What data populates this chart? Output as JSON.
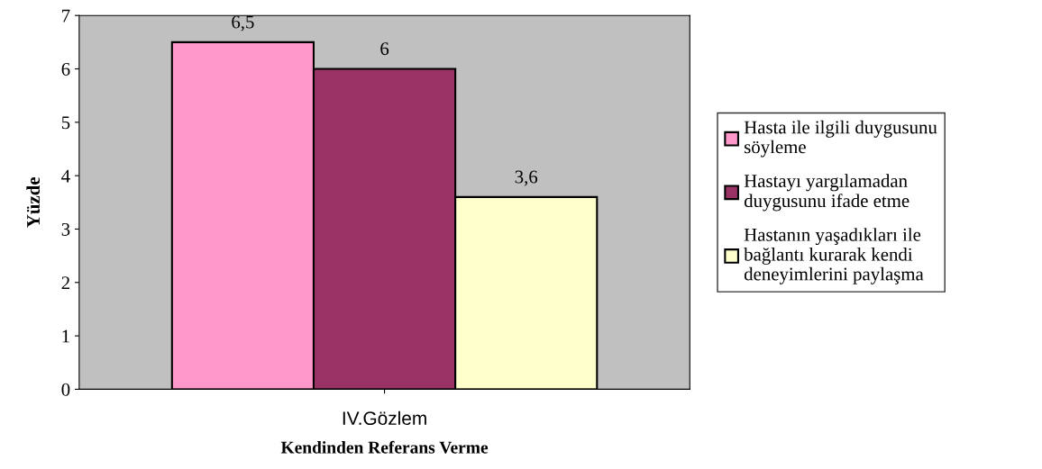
{
  "chart_data": {
    "type": "bar",
    "xlabel": "Kendinden Referans Verme",
    "ylabel": "Yüzde",
    "categories": [
      "IV.Gözlem"
    ],
    "series": [
      {
        "name": "Hasta ile ilgili duygusunu\nsöyleme",
        "color": "#ff99cc",
        "values": [
          6.5
        ],
        "value_labels": [
          "6,5"
        ]
      },
      {
        "name": "Hastayı yargılamadan\nduygusunu ifade etme",
        "color": "#993366",
        "values": [
          6
        ],
        "value_labels": [
          "6"
        ]
      },
      {
        "name": "Hastanın yaşadıkları ile\nbağlantı kurarak kendi\ndeneyimlerini paylaşma",
        "color": "#ffffcc",
        "values": [
          3.6
        ],
        "value_labels": [
          "3,6"
        ]
      }
    ],
    "ylim": [
      0,
      7
    ],
    "yticks": [
      0,
      1,
      2,
      3,
      4,
      5,
      6,
      7
    ],
    "grid": false,
    "legend": "right"
  }
}
